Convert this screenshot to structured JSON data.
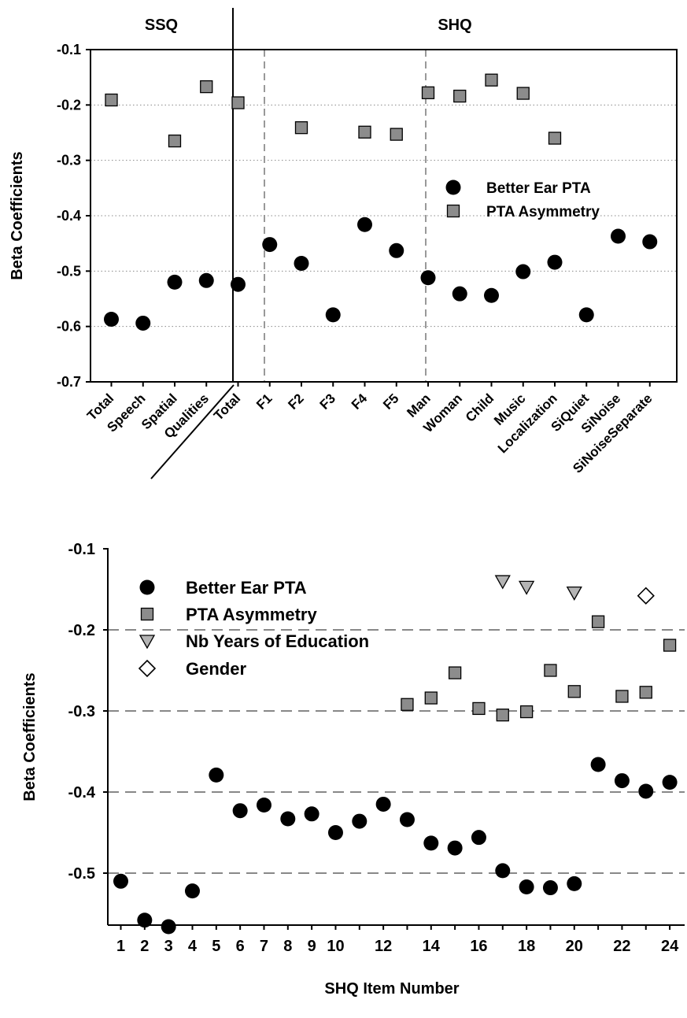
{
  "chart_data": [
    {
      "type": "scatter",
      "title": "",
      "ylabel": "Beta Coefficients",
      "xlabel": "",
      "ylim": [
        -0.7,
        -0.1
      ],
      "yticks": [
        "-0.1",
        "-0.2",
        "-0.3",
        "-0.4",
        "-0.5",
        "-0.6",
        "-0.7"
      ],
      "grid": "dotted horizontal",
      "legend_placement": "right-middle",
      "group_headers": [
        "SSQ",
        "SHQ"
      ],
      "categories": [
        "Total",
        "Speech",
        "Spatial",
        "Qualities",
        "Total",
        "F1",
        "F2",
        "F3",
        "F4",
        "F5",
        "Man",
        "Woman",
        "Child",
        "Music",
        "Localization",
        "SiQuiet",
        "SiNoise",
        "SiNoiseSeparate"
      ],
      "series": [
        {
          "name": "Better Ear PTA",
          "marker": "circle",
          "color": "#000000",
          "values": [
            -0.587,
            -0.594,
            -0.52,
            -0.517,
            -0.524,
            -0.452,
            -0.486,
            -0.579,
            -0.416,
            -0.463,
            -0.512,
            -0.541,
            -0.544,
            -0.501,
            -0.484,
            -0.579,
            -0.437,
            -0.447
          ]
        },
        {
          "name": "PTA Asymmetry",
          "marker": "square",
          "color": "#8c8c8c",
          "values": [
            -0.191,
            null,
            -0.265,
            -0.167,
            -0.196,
            null,
            -0.241,
            null,
            -0.249,
            -0.253,
            -0.178,
            -0.184,
            -0.155,
            -0.179,
            -0.26,
            null,
            null,
            null
          ]
        }
      ]
    },
    {
      "type": "scatter",
      "title": "",
      "ylabel": "Beta Coefficients",
      "xlabel": "SHQ Item Number",
      "ylim": [
        -0.6,
        -0.1
      ],
      "yticks": [
        "-0.1",
        "-0.2",
        "-0.3",
        "-0.4",
        "-0.5"
      ],
      "xticks": [
        "1",
        "2",
        "3",
        "4",
        "5",
        "6",
        "7",
        "8",
        "9",
        "10",
        "12",
        "14",
        "16",
        "18",
        "20",
        "22",
        "24"
      ],
      "grid": "dashed horizontal",
      "legend_placement": "top-left",
      "series": [
        {
          "name": "Better Ear PTA",
          "marker": "circle",
          "color": "#000000",
          "x": [
            1,
            2,
            3,
            4,
            5,
            6,
            7,
            8,
            9,
            10,
            11,
            12,
            13,
            14,
            15,
            16,
            17,
            18,
            19,
            20,
            21,
            22,
            23,
            24
          ],
          "y": [
            -0.51,
            -0.558,
            -0.566,
            -0.522,
            -0.379,
            -0.423,
            -0.416,
            -0.433,
            -0.427,
            -0.45,
            -0.436,
            -0.415,
            -0.434,
            -0.463,
            -0.469,
            -0.456,
            -0.497,
            -0.517,
            -0.518,
            -0.513,
            -0.366,
            -0.386,
            -0.399,
            -0.388
          ]
        },
        {
          "name": "PTA Asymmetry",
          "marker": "square",
          "color": "#8c8c8c",
          "x": [
            13,
            14,
            15,
            16,
            17,
            18,
            19,
            20,
            21,
            22,
            23,
            24
          ],
          "y": [
            -0.292,
            -0.284,
            -0.253,
            -0.297,
            -0.305,
            -0.301,
            -0.25,
            -0.276,
            -0.19,
            -0.282,
            -0.277,
            -0.219
          ]
        },
        {
          "name": "Nb Years of Education",
          "marker": "triangle-down",
          "color": "#b4b4b4",
          "x": [
            17,
            18,
            20
          ],
          "y": [
            -0.14,
            -0.147,
            -0.154
          ]
        },
        {
          "name": "Gender",
          "marker": "diamond-open",
          "color": "#ffffff",
          "x": [
            23
          ],
          "y": [
            -0.158
          ]
        }
      ]
    }
  ]
}
